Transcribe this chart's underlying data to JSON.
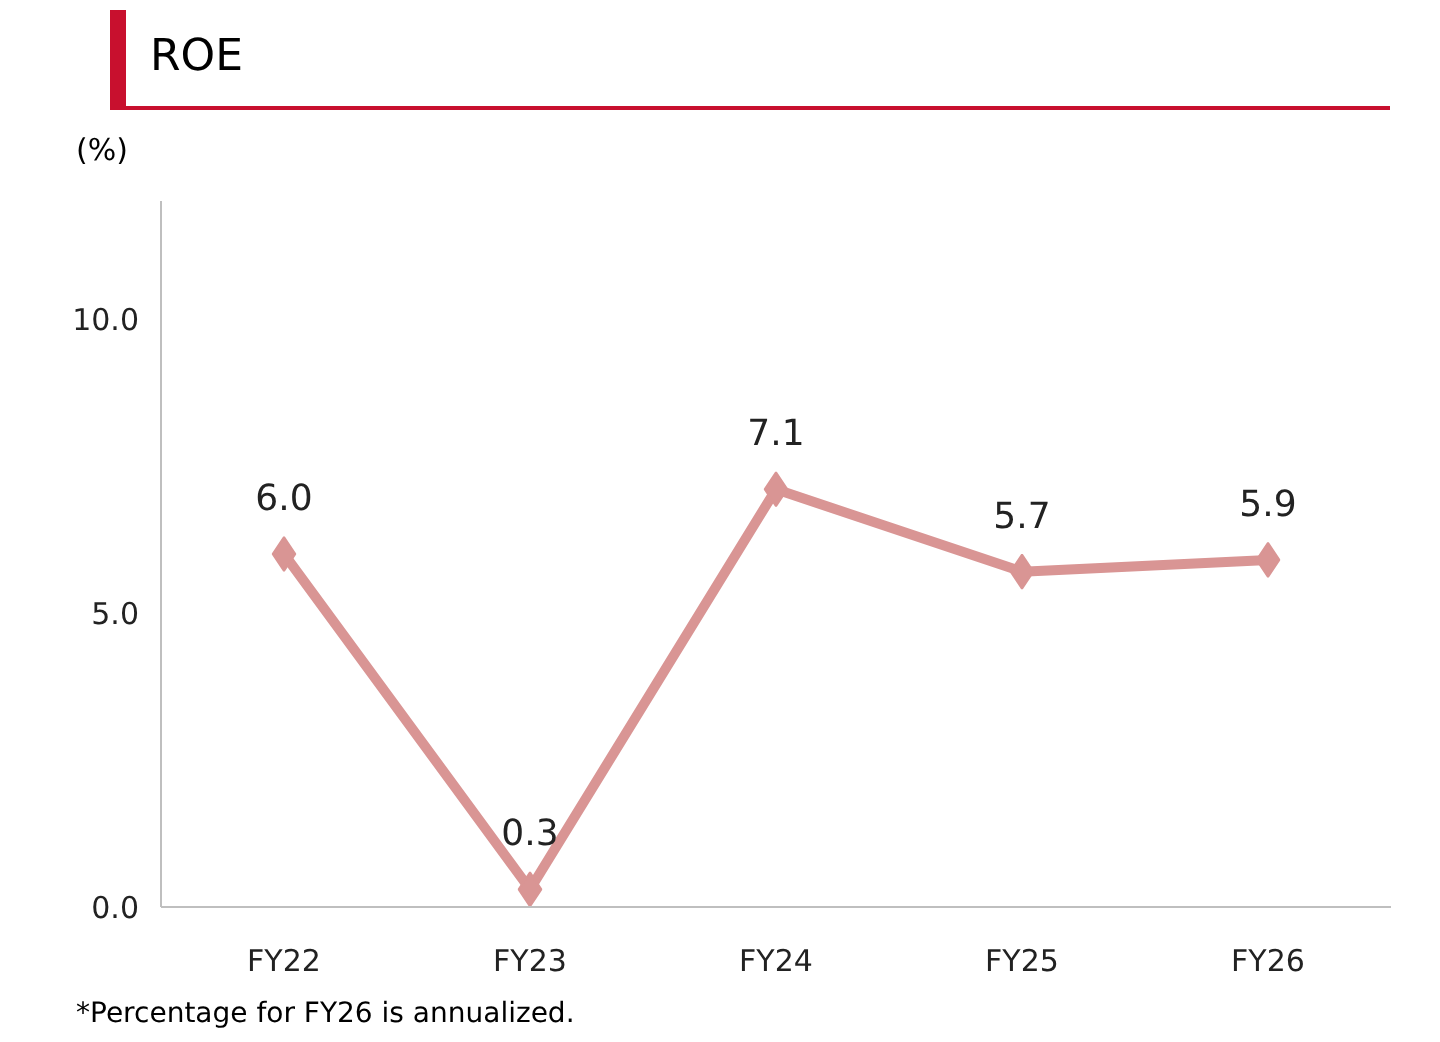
{
  "chart_data": {
    "type": "line",
    "title": "ROE",
    "ylabel": "(%)",
    "categories": [
      "FY22",
      "FY23",
      "FY24",
      "FY25",
      "FY26"
    ],
    "series": [
      {
        "color": "#d99594",
        "values": [
          6.0,
          0.3,
          7.1,
          5.7,
          5.9
        ],
        "value_labels": [
          "6.0",
          "0.3",
          "7.1",
          "5.7",
          "5.9"
        ]
      }
    ],
    "ylim": [
      0,
      12
    ],
    "yticks": [
      {
        "value": 0,
        "label": "0.0"
      },
      {
        "value": 5,
        "label": "5.0"
      },
      {
        "value": 10,
        "label": "10.0"
      }
    ],
    "marker": "diamond",
    "line_style": "solid",
    "grid": false,
    "annotations": [
      "*Percentage for FY26 is annualized."
    ]
  }
}
